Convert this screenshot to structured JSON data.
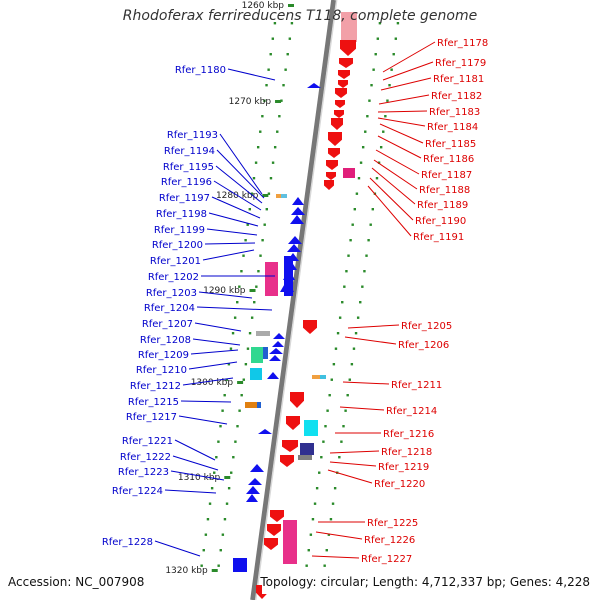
{
  "title": "Rhodoferax ferrireducens T118, complete genome",
  "accession": "Accession: NC_007908",
  "topology": "Topology: circular; Length: 4,712,337 bp; Genes: 4,228",
  "ticks": [
    {
      "label": "1260 kbp",
      "kbp": 1260
    },
    {
      "label": "1270 kbp",
      "kbp": 1270
    },
    {
      "label": "1280 kbp",
      "kbp": 1280
    },
    {
      "label": "1290 kbp",
      "kbp": 1290
    },
    {
      "label": "1300 kbp",
      "kbp": 1300
    },
    {
      "label": "1310 kbp",
      "kbp": 1310
    },
    {
      "label": "1320 kbp",
      "kbp": 1320
    }
  ],
  "colors": {
    "left_labels": "#0000cc",
    "right_labels": "#dd0000",
    "backbone": "#888888",
    "forward_gene": "#1010ee",
    "reverse_gene": "#ee1010",
    "tick": "#2a8a2a"
  },
  "left_genes": [
    "Rfer_1180",
    "Rfer_1193",
    "Rfer_1194",
    "Rfer_1195",
    "Rfer_1196",
    "Rfer_1197",
    "Rfer_1198",
    "Rfer_1199",
    "Rfer_1200",
    "Rfer_1201",
    "Rfer_1202",
    "Rfer_1203",
    "Rfer_1204",
    "Rfer_1207",
    "Rfer_1208",
    "Rfer_1209",
    "Rfer_1210",
    "Rfer_1212",
    "Rfer_1215",
    "Rfer_1217",
    "Rfer_1221",
    "Rfer_1222",
    "Rfer_1223",
    "Rfer_1224",
    "Rfer_1228"
  ],
  "right_genes": [
    "Rfer_1178",
    "Rfer_1179",
    "Rfer_1181",
    "Rfer_1182",
    "Rfer_1183",
    "Rfer_1184",
    "Rfer_1185",
    "Rfer_1186",
    "Rfer_1187",
    "Rfer_1188",
    "Rfer_1189",
    "Rfer_1190",
    "Rfer_1191",
    "Rfer_1205",
    "Rfer_1206",
    "Rfer_1211",
    "Rfer_1214",
    "Rfer_1216",
    "Rfer_1218",
    "Rfer_1219",
    "Rfer_1220",
    "Rfer_1225",
    "Rfer_1226",
    "Rfer_1227"
  ]
}
